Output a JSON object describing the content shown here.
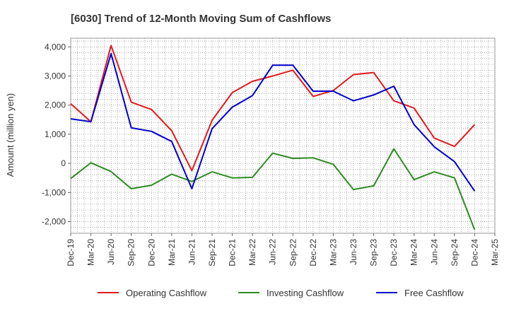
{
  "chart_data": {
    "type": "line",
    "title": "[6030]  Trend of 12-Month Moving Sum of Cashflows",
    "ylabel": "Amount (million yen)",
    "xlabel": "",
    "ylim": [
      -2400,
      4300
    ],
    "yticks": [
      4000,
      3000,
      2000,
      1000,
      0,
      -1000,
      -2000
    ],
    "ytick_labels": [
      "4,000",
      "3,000",
      "2,000",
      "1,000",
      "0",
      "-1,000",
      "-2,000"
    ],
    "categories": [
      "Dec-19",
      "Mar-20",
      "Jun-20",
      "Sep-20",
      "Dec-20",
      "Mar-21",
      "Jun-21",
      "Sep-21",
      "Dec-21",
      "Mar-22",
      "Jun-22",
      "Sep-22",
      "Dec-22",
      "Mar-23",
      "Jun-23",
      "Sep-23",
      "Dec-23",
      "Mar-24",
      "Jun-24",
      "Sep-24",
      "Dec-24",
      "Mar-25"
    ],
    "grid": true,
    "legend_position": "bottom",
    "series": [
      {
        "name": "Operating Cashflow",
        "color": "#e31a1c",
        "values": [
          2050,
          1430,
          4050,
          2100,
          1850,
          1120,
          -250,
          1480,
          2430,
          2820,
          3000,
          3200,
          2300,
          2500,
          3050,
          3120,
          2150,
          1900,
          870,
          580,
          1330,
          null
        ]
      },
      {
        "name": "Investing Cashflow",
        "color": "#2e8b22",
        "values": [
          -520,
          20,
          -280,
          -870,
          -750,
          -370,
          -620,
          -290,
          -500,
          -480,
          350,
          170,
          190,
          -30,
          -900,
          -770,
          500,
          -560,
          -290,
          -500,
          -2280,
          null
        ]
      },
      {
        "name": "Free Cashflow",
        "color": "#0000cc",
        "values": [
          1530,
          1430,
          3770,
          1220,
          1100,
          750,
          -870,
          1190,
          1930,
          2330,
          3370,
          3370,
          2480,
          2480,
          2150,
          2350,
          2650,
          1330,
          570,
          60,
          -950,
          null
        ]
      }
    ]
  }
}
